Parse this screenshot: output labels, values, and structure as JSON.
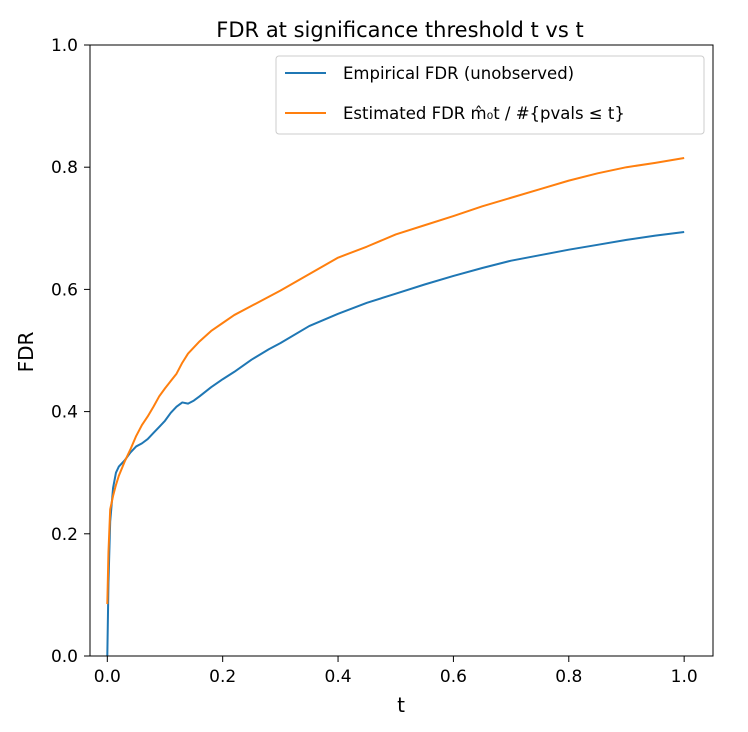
{
  "chart_data": {
    "type": "line",
    "title": "FDR at significance threshold t vs t",
    "xlabel": "t",
    "ylabel": "FDR",
    "xlim": [
      -0.03,
      1.05
    ],
    "ylim": [
      0.0,
      1.0
    ],
    "xticks": [
      0.0,
      0.2,
      0.4,
      0.6,
      0.8,
      1.0
    ],
    "xtick_labels": [
      "0.0",
      "0.2",
      "0.4",
      "0.6",
      "0.8",
      "1.0"
    ],
    "yticks": [
      0.0,
      0.2,
      0.4,
      0.6,
      0.8,
      1.0
    ],
    "ytick_labels": [
      "0.0",
      "0.2",
      "0.4",
      "0.6",
      "0.8",
      "1.0"
    ],
    "grid": false,
    "legend_position": "top-right",
    "series": [
      {
        "name": "Empirical FDR (unobserved)",
        "color": "#1f77b4",
        "x": [
          0.0,
          0.002,
          0.005,
          0.01,
          0.015,
          0.02,
          0.03,
          0.04,
          0.05,
          0.06,
          0.07,
          0.08,
          0.09,
          0.1,
          0.11,
          0.12,
          0.13,
          0.14,
          0.15,
          0.16,
          0.18,
          0.2,
          0.22,
          0.25,
          0.28,
          0.3,
          0.35,
          0.4,
          0.45,
          0.5,
          0.55,
          0.6,
          0.65,
          0.7,
          0.75,
          0.8,
          0.85,
          0.9,
          0.95,
          1.0
        ],
        "y": [
          0.0,
          0.12,
          0.22,
          0.275,
          0.3,
          0.31,
          0.32,
          0.333,
          0.343,
          0.348,
          0.355,
          0.365,
          0.375,
          0.385,
          0.398,
          0.408,
          0.415,
          0.413,
          0.418,
          0.425,
          0.44,
          0.453,
          0.465,
          0.485,
          0.502,
          0.512,
          0.54,
          0.56,
          0.578,
          0.593,
          0.608,
          0.622,
          0.635,
          0.647,
          0.656,
          0.665,
          0.673,
          0.681,
          0.688,
          0.694
        ]
      },
      {
        "name": "Estimated FDR m̂₀t / #{pvals ≤ t}",
        "color": "#ff7f0e",
        "x": [
          0.0,
          0.002,
          0.005,
          0.01,
          0.015,
          0.02,
          0.03,
          0.04,
          0.05,
          0.06,
          0.07,
          0.08,
          0.09,
          0.1,
          0.11,
          0.12,
          0.13,
          0.14,
          0.15,
          0.16,
          0.18,
          0.2,
          0.22,
          0.25,
          0.28,
          0.3,
          0.35,
          0.4,
          0.45,
          0.5,
          0.55,
          0.6,
          0.65,
          0.7,
          0.75,
          0.8,
          0.85,
          0.9,
          0.95,
          1.0
        ],
        "y": [
          0.085,
          0.17,
          0.24,
          0.262,
          0.28,
          0.295,
          0.318,
          0.338,
          0.36,
          0.378,
          0.392,
          0.408,
          0.425,
          0.438,
          0.45,
          0.462,
          0.48,
          0.495,
          0.505,
          0.515,
          0.532,
          0.545,
          0.558,
          0.573,
          0.588,
          0.598,
          0.625,
          0.652,
          0.67,
          0.69,
          0.705,
          0.72,
          0.736,
          0.75,
          0.764,
          0.778,
          0.79,
          0.8,
          0.807,
          0.815
        ]
      }
    ]
  }
}
